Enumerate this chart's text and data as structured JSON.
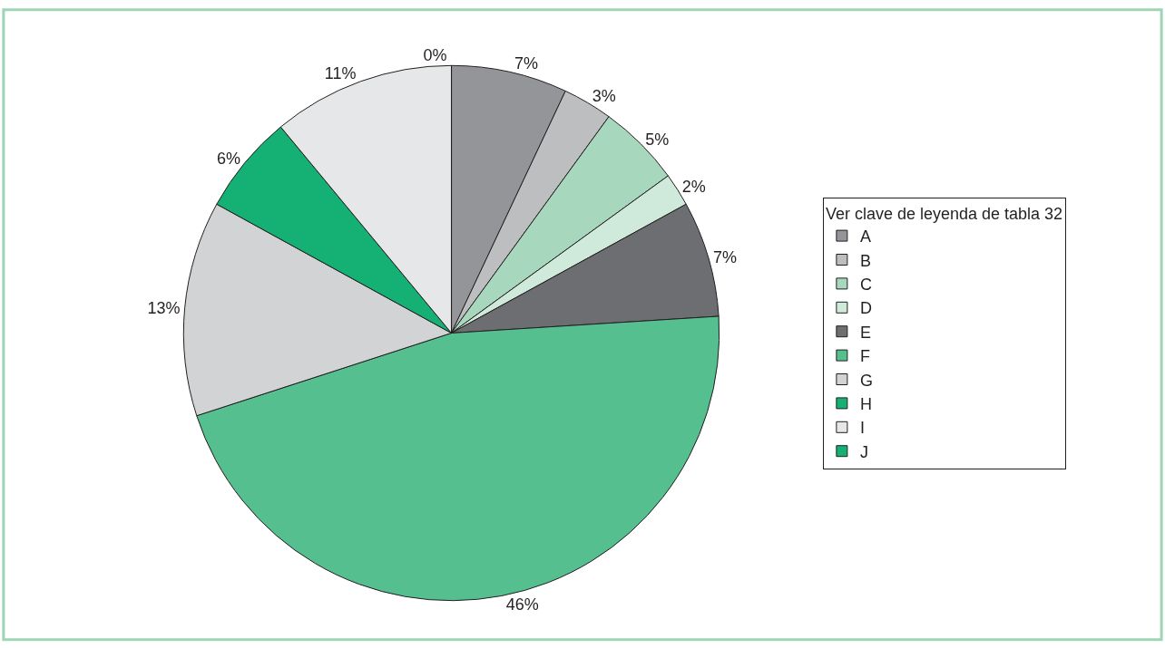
{
  "chart_data": {
    "type": "pie",
    "legend_title": "Ver clave de leyenda de tabla 32",
    "categories": [
      "A",
      "B",
      "C",
      "D",
      "E",
      "F",
      "G",
      "H",
      "I",
      "J"
    ],
    "values": [
      7,
      3,
      5,
      2,
      7,
      46,
      13,
      6,
      11,
      0
    ],
    "value_labels": [
      "7%",
      "3%",
      "5%",
      "2%",
      "7%",
      "46%",
      "13%",
      "6%",
      "11%",
      "0%"
    ],
    "colors": [
      "#939598",
      "#bcbec0",
      "#a7d7bd",
      "#cfe9da",
      "#6d6e71",
      "#55bf8f",
      "#d1d3d4",
      "#14b074",
      "#e6e7e8",
      "#14b074"
    ],
    "legend": "right"
  }
}
